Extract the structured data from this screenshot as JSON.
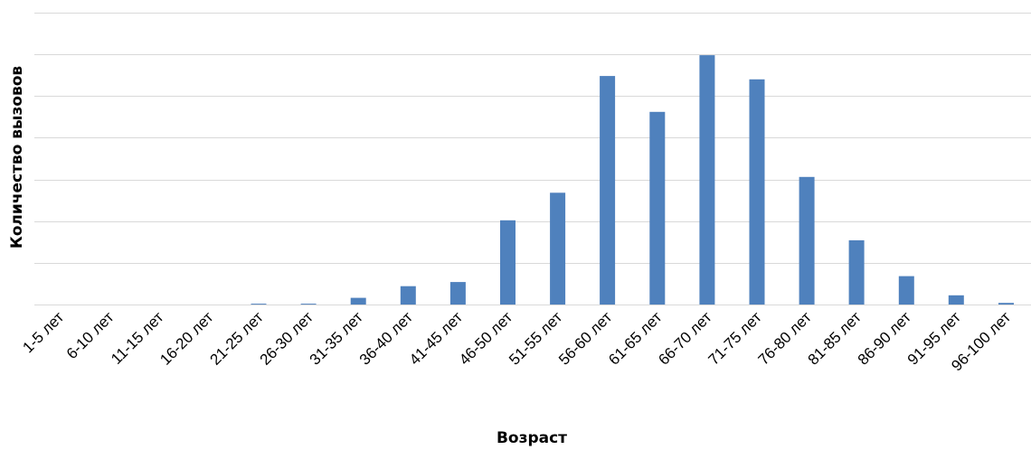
{
  "chart_data": {
    "type": "bar",
    "title": "",
    "xlabel": "Возраст",
    "ylabel": "Количество вызовов",
    "categories": [
      "1-5 лет",
      "6-10 лет",
      "11-15 лет",
      "16-20 лет",
      "21-25 лет",
      "26-30 лет",
      "31-35 лет",
      "36-40 лет",
      "41-45 лет",
      "46-50 лет",
      "51-55 лет",
      "56-60 лет",
      "61-65 лет",
      "66-70 лет",
      "71-75 лет",
      "76-80 лет",
      "81-85 лет",
      "86-90 лет",
      "91-95 лет",
      "96-100 лет"
    ],
    "values": [
      0,
      0,
      0,
      0,
      0.2,
      0.2,
      1.6,
      4.4,
      5.4,
      20.2,
      26.8,
      54.8,
      46.2,
      59.8,
      54.0,
      30.6,
      15.4,
      6.8,
      2.2,
      0.4
    ],
    "ylim": [
      0,
      70
    ],
    "y_gridlines": [
      0,
      10,
      20,
      30,
      40,
      50,
      60,
      70
    ],
    "y_tick_labels_shown": false,
    "grid": true,
    "legend": "none",
    "bar_color": "#4f81bd",
    "grid_color": "#d9d9d9"
  }
}
